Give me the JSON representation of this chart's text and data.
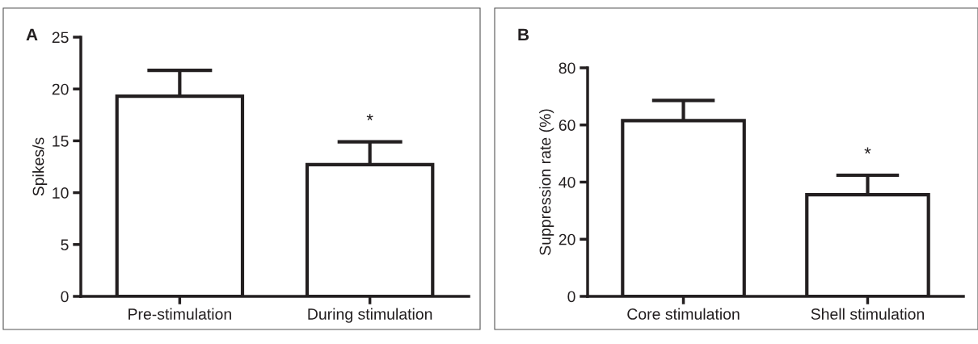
{
  "chart_data": [
    {
      "type": "bar",
      "categories": [
        "Pre-stimulation",
        "During stimulation"
      ],
      "values": [
        19.3,
        12.7
      ],
      "errors": [
        [
          19.3,
          21.8
        ],
        [
          12.7,
          14.9
        ]
      ],
      "color": "#ffffff",
      "ylabel": "Spikes/s",
      "ylim": [
        0,
        25
      ],
      "yticks": [
        0,
        5,
        10,
        15,
        20,
        25
      ],
      "annotations": [
        "A",
        {
          "text": "*",
          "x": "During stimulation",
          "y": 14.9
        }
      ]
    },
    {
      "type": "bar",
      "categories": [
        "Core stimulation",
        "Shell stimulation"
      ],
      "values": [
        61.5,
        35.6
      ],
      "errors": [
        [
          61.5,
          68.6
        ],
        [
          35.6,
          42.4
        ]
      ],
      "color": "#ffffff",
      "ylabel": "Suppression rate (%)",
      "ylim": [
        0,
        80
      ],
      "yticks": [
        0,
        20,
        40,
        60,
        80
      ],
      "annotations": [
        "B",
        {
          "text": "*",
          "x": "Shell stimulation",
          "y": 42.4
        }
      ]
    }
  ]
}
